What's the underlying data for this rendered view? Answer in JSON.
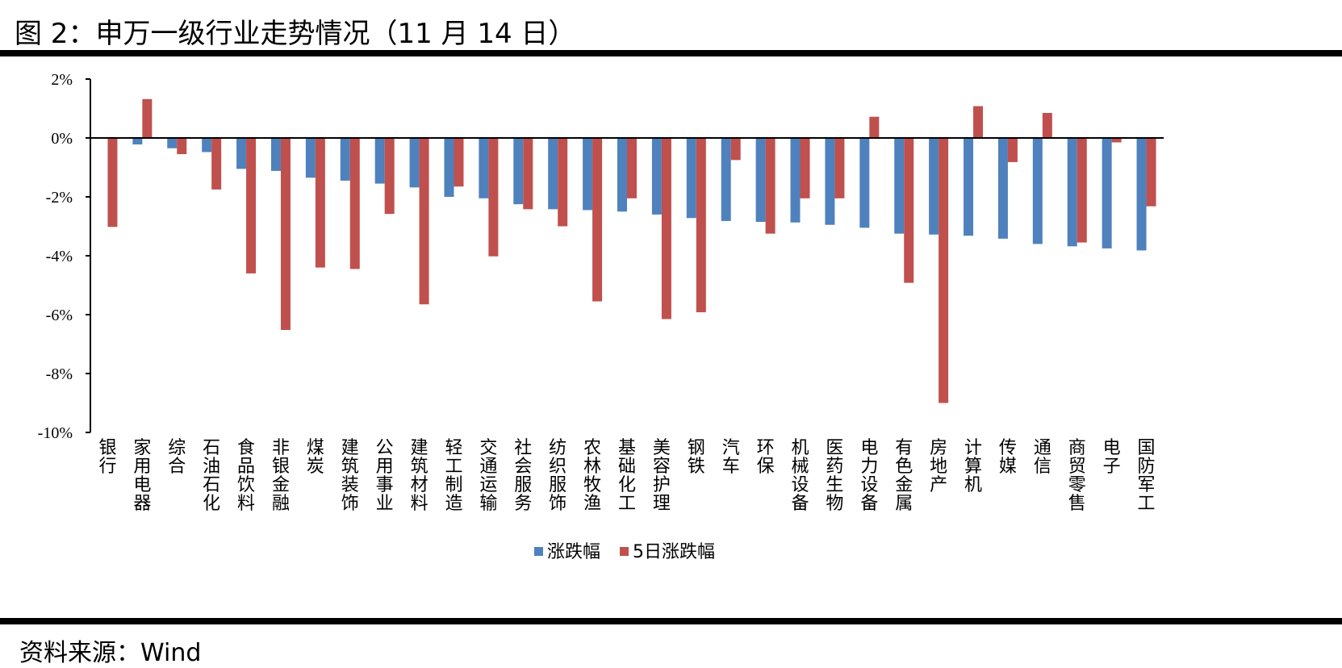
{
  "figure": {
    "title": "图 2：申万一级行业走势情况（11 月 14 日）",
    "source": "资料来源：Wind"
  },
  "colors": {
    "series1": "#4F81BD",
    "series2": "#C0504D",
    "axis": "#000000"
  },
  "chart_data": {
    "type": "bar",
    "title": "",
    "xlabel": "",
    "ylabel": "",
    "ylim": [
      -10,
      2
    ],
    "yticks": [
      2,
      0,
      -2,
      -4,
      -6,
      -8,
      -10
    ],
    "ytick_labels": [
      "2%",
      "0%",
      "-2%",
      "-4%",
      "-6%",
      "-8%",
      "-10%"
    ],
    "grid": false,
    "legend_position": "bottom-center",
    "categories": [
      "银行",
      "家用电器",
      "综合",
      "石油石化",
      "食品饮料",
      "非银金融",
      "煤炭",
      "建筑装饰",
      "公用事业",
      "建筑材料",
      "轻工制造",
      "交通运输",
      "社会服务",
      "纺织服饰",
      "农林牧渔",
      "基础化工",
      "美容护理",
      "钢铁",
      "汽车",
      "环保",
      "机械设备",
      "医药生物",
      "电力设备",
      "有色金属",
      "房地产",
      "计算机",
      "传媒",
      "通信",
      "商贸零售",
      "电子",
      "国防军工"
    ],
    "series": [
      {
        "name": "涨跌幅",
        "values": [
          0.0,
          -0.22,
          -0.35,
          -0.48,
          -1.05,
          -1.12,
          -1.35,
          -1.45,
          -1.55,
          -1.68,
          -2.0,
          -2.05,
          -2.25,
          -2.42,
          -2.45,
          -2.5,
          -2.6,
          -2.72,
          -2.82,
          -2.85,
          -2.87,
          -2.95,
          -3.05,
          -3.25,
          -3.28,
          -3.32,
          -3.42,
          -3.6,
          -3.68,
          -3.75,
          -3.82
        ]
      },
      {
        "name": "5日涨跌幅",
        "values": [
          -3.02,
          1.32,
          -0.55,
          -1.75,
          -4.6,
          -6.52,
          -4.4,
          -4.45,
          -2.58,
          -5.65,
          -1.65,
          -4.02,
          -2.42,
          -3.0,
          -5.55,
          -2.05,
          -6.15,
          -5.92,
          -0.75,
          -3.25,
          -2.05,
          -2.05,
          0.72,
          -4.92,
          -9.0,
          1.08,
          -0.82,
          0.85,
          -3.55,
          -0.15,
          -2.32
        ]
      }
    ]
  }
}
